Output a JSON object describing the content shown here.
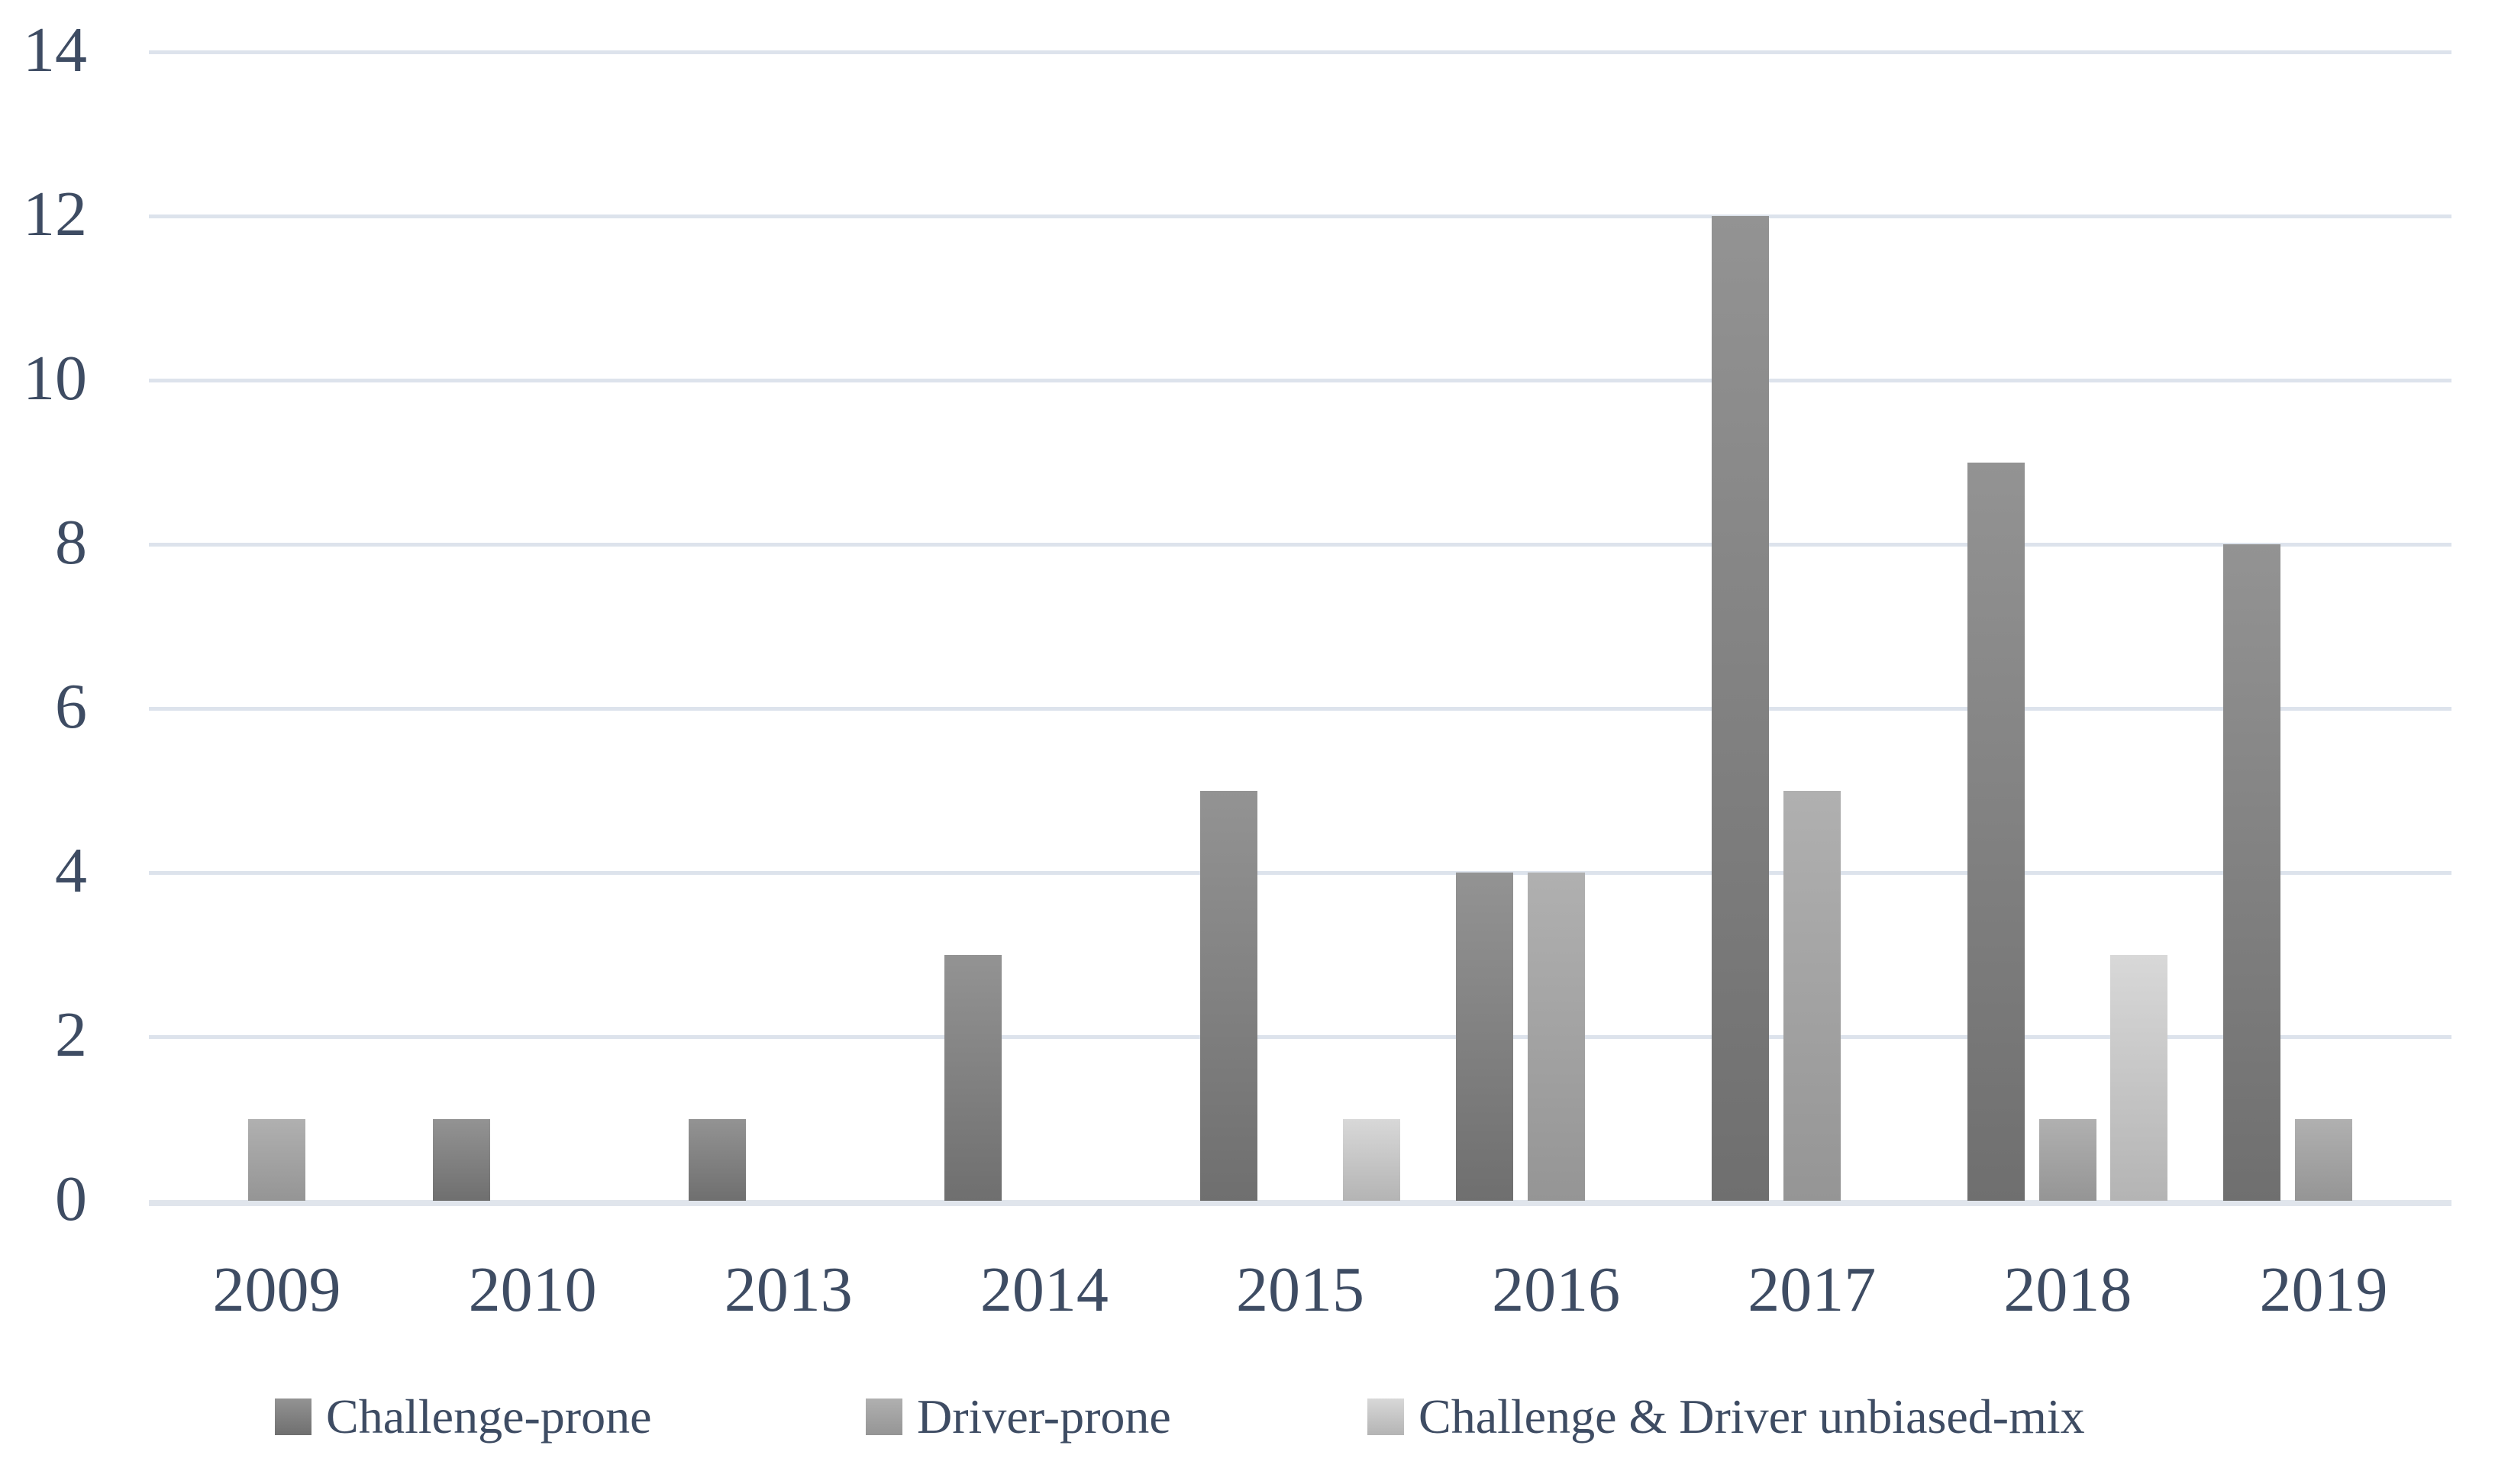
{
  "chart_data": {
    "type": "bar",
    "title": "",
    "xlabel": "",
    "ylabel": "",
    "categories": [
      "2009",
      "2010",
      "2013",
      "2014",
      "2015",
      "2016",
      "2017",
      "2018",
      "2019"
    ],
    "series": [
      {
        "name": "Challenge-prone",
        "values": [
          0,
          1,
          1,
          3,
          5,
          4,
          12,
          9,
          8
        ],
        "color_top": "#939393",
        "color_bottom": "#6f6f6f"
      },
      {
        "name": "Driver-prone",
        "values": [
          1,
          0,
          0,
          0,
          0,
          4,
          5,
          1,
          1
        ],
        "color_top": "#b0b0b0",
        "color_bottom": "#959595"
      },
      {
        "name": "Challenge & Driver unbiased-mix",
        "values": [
          0,
          0,
          0,
          0,
          1,
          0,
          0,
          3,
          0
        ],
        "color_top": "#d8d8d8",
        "color_bottom": "#b4b4b4"
      }
    ],
    "y_ticks": [
      0,
      2,
      4,
      6,
      8,
      10,
      12,
      14
    ],
    "ylim": [
      0,
      14
    ],
    "grid": true,
    "legend_position": "bottom",
    "colors": {
      "axis_text": "#3e4c63",
      "gridline": "#dde3ec",
      "axis_line": "#e0e5ec",
      "background": "#ffffff"
    }
  }
}
